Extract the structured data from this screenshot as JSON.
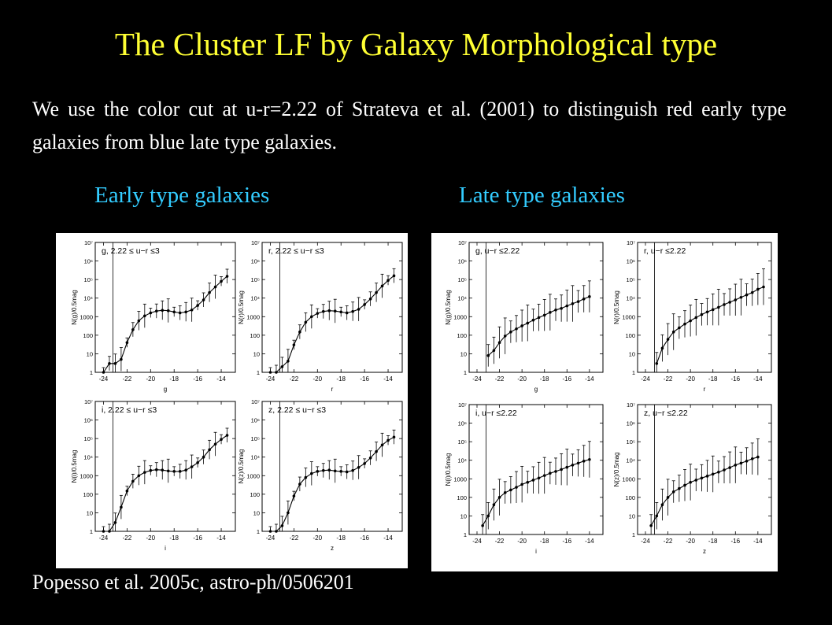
{
  "slide": {
    "title": "The Cluster LF by Galaxy Morphological type",
    "intro": "We use the color cut at u-r=2.22 of Strateva et al. (2001) to distinguish red early type galaxies from blue late type galaxies.",
    "early_title": "Early type galaxies",
    "late_title": "Late type galaxies",
    "citation": "Popesso et al. 2005c, astro-ph/0506201"
  },
  "chart_data": [
    {
      "type": "scatter",
      "group": "early",
      "band": "g",
      "annotation": "g, 2.22 ≤ u−r ≤3",
      "ylabel": "N(g)/0.5mag",
      "xlabel": "g",
      "xlim": [
        -24.7,
        -12.8
      ],
      "ylim_log10": [
        0,
        7
      ],
      "xticks": [
        -24,
        -22,
        -20,
        -18,
        -16,
        -14
      ],
      "yticks": [
        "1",
        "10",
        "100",
        "1000",
        "10⁴",
        "10⁵",
        "10⁶",
        "10⁷"
      ],
      "x": [
        -24,
        -23.5,
        -23,
        -22.5,
        -22,
        -21.5,
        -21,
        -20.5,
        -20,
        -19.5,
        -19,
        -18.5,
        -18,
        -17.5,
        -17,
        -16.5,
        -16,
        -15.5,
        -15,
        -14.5,
        -14,
        -13.5
      ],
      "y": [
        1,
        3,
        3,
        5,
        40,
        200,
        600,
        1100,
        1600,
        2000,
        2200,
        2100,
        1800,
        1600,
        1800,
        2300,
        4000,
        8000,
        20000,
        40000,
        80000,
        150000
      ]
    },
    {
      "type": "scatter",
      "group": "early",
      "band": "r",
      "annotation": "r, 2.22 ≤ u−r ≤3",
      "ylabel": "N(r)/0.5mag",
      "xlabel": "r",
      "xlim": [
        -24.7,
        -12.8
      ],
      "ylim_log10": [
        0,
        7
      ],
      "xticks": [
        -24,
        -22,
        -20,
        -18,
        -16,
        -14
      ],
      "yticks": [
        "1",
        "10",
        "100",
        "1000",
        "10⁴",
        "10⁵",
        "10⁶",
        "10⁷"
      ],
      "x": [
        -24,
        -23.5,
        -23,
        -22.5,
        -22,
        -21.5,
        -21,
        -20.5,
        -20,
        -19.5,
        -19,
        -18.5,
        -18,
        -17.5,
        -17,
        -16.5,
        -16,
        -15.5,
        -15,
        -14.5,
        -14,
        -13.5
      ],
      "y": [
        1,
        1,
        2,
        4,
        30,
        150,
        500,
        1000,
        1500,
        1900,
        2100,
        2000,
        1800,
        1600,
        1900,
        2500,
        4500,
        9000,
        20000,
        45000,
        90000,
        160000
      ]
    },
    {
      "type": "scatter",
      "group": "early",
      "band": "i",
      "annotation": "i, 2.22 ≤ u−r ≤3",
      "ylabel": "N(i)/0.5mag",
      "xlabel": "i",
      "xlim": [
        -24.7,
        -12.8
      ],
      "ylim_log10": [
        0,
        7
      ],
      "xticks": [
        -24,
        -22,
        -20,
        -18,
        -16,
        -14
      ],
      "yticks": [
        "1",
        "10",
        "100",
        "1000",
        "10⁴",
        "10⁵",
        "10⁶",
        "10⁷"
      ],
      "x": [
        -24,
        -23.5,
        -23,
        -22.5,
        -22,
        -21.5,
        -21,
        -20.5,
        -20,
        -19.5,
        -19,
        -18.5,
        -18,
        -17.5,
        -17,
        -16.5,
        -16,
        -15.5,
        -15,
        -14.5,
        -14,
        -13.5
      ],
      "y": [
        1,
        1,
        3,
        20,
        150,
        500,
        1000,
        1500,
        1900,
        2100,
        2000,
        1800,
        1700,
        1700,
        2000,
        3000,
        5000,
        10000,
        25000,
        50000,
        90000,
        150000
      ]
    },
    {
      "type": "scatter",
      "group": "early",
      "band": "z",
      "annotation": "z, 2.22 ≤ u−r ≤3",
      "ylabel": "N(z)/0.5mag",
      "xlabel": "z",
      "xlim": [
        -24.7,
        -12.8
      ],
      "ylim_log10": [
        0,
        7
      ],
      "xticks": [
        -24,
        -22,
        -20,
        -18,
        -16,
        -14
      ],
      "yticks": [
        "1",
        "10",
        "100",
        "1000",
        "10⁴",
        "10⁵",
        "10⁶",
        "10⁷"
      ],
      "x": [
        -24,
        -23.5,
        -23,
        -22.5,
        -22,
        -21.5,
        -21,
        -20.5,
        -20,
        -19.5,
        -19,
        -18.5,
        -18,
        -17.5,
        -17,
        -16.5,
        -16,
        -15.5,
        -15,
        -14.5,
        -14,
        -13.5
      ],
      "y": [
        1,
        1,
        2,
        10,
        80,
        350,
        800,
        1300,
        1700,
        1900,
        2000,
        1800,
        1700,
        1600,
        1900,
        2800,
        4500,
        9000,
        20000,
        45000,
        80000,
        120000
      ]
    },
    {
      "type": "scatter",
      "group": "late",
      "band": "g",
      "annotation": "g, u−r ≤2.22",
      "ylabel": "N(g)/0.5mag",
      "xlabel": "g",
      "xlim": [
        -24.7,
        -12.8
      ],
      "ylim_log10": [
        0,
        7
      ],
      "xticks": [
        -24,
        -22,
        -20,
        -18,
        -16,
        -14
      ],
      "yticks": [
        "1",
        "10",
        "100",
        "1000",
        "10⁴",
        "10⁵",
        "10⁶",
        "10⁷"
      ],
      "x": [
        -23,
        -22.5,
        -22,
        -21.5,
        -21,
        -20.5,
        -20,
        -19.5,
        -19,
        -18.5,
        -18,
        -17.5,
        -17,
        -16.5,
        -16,
        -15.5,
        -15,
        -14.5,
        -14
      ],
      "y": [
        8,
        15,
        40,
        90,
        150,
        220,
        320,
        450,
        650,
        900,
        1200,
        1700,
        2300,
        2800,
        3800,
        5000,
        6500,
        9000,
        12000
      ]
    },
    {
      "type": "scatter",
      "group": "late",
      "band": "r",
      "annotation": "r, u−r ≤2.22",
      "ylabel": "N(r)/0.5mag",
      "xlabel": "r",
      "xlim": [
        -24.7,
        -12.8
      ],
      "ylim_log10": [
        0,
        7
      ],
      "xticks": [
        -24,
        -22,
        -20,
        -18,
        -16,
        -14
      ],
      "yticks": [
        "1",
        "10",
        "100",
        "1000",
        "10⁴",
        "10⁵",
        "10⁶",
        "10⁷"
      ],
      "x": [
        -23,
        -22.5,
        -22,
        -21.5,
        -21,
        -20.5,
        -20,
        -19.5,
        -19,
        -18.5,
        -18,
        -17.5,
        -17,
        -16.5,
        -16,
        -15.5,
        -15,
        -14.5,
        -14,
        -13.5
      ],
      "y": [
        3,
        20,
        60,
        150,
        250,
        400,
        600,
        900,
        1300,
        1800,
        2400,
        3200,
        4500,
        6000,
        8000,
        11000,
        15000,
        20000,
        30000,
        40000
      ]
    },
    {
      "type": "scatter",
      "group": "late",
      "band": "i",
      "annotation": "i, u−r ≤2.22",
      "ylabel": "N(i)/0.5mag",
      "xlabel": "i",
      "xlim": [
        -24.7,
        -12.8
      ],
      "ylim_log10": [
        0,
        7
      ],
      "xticks": [
        -24,
        -22,
        -20,
        -18,
        -16,
        -14
      ],
      "yticks": [
        "1",
        "10",
        "100",
        "1000",
        "10⁴",
        "10⁵",
        "10⁶",
        "10⁷"
      ],
      "x": [
        -23.5,
        -23,
        -22.5,
        -22,
        -21.5,
        -21,
        -20.5,
        -20,
        -19.5,
        -19,
        -18.5,
        -18,
        -17.5,
        -17,
        -16.5,
        -16,
        -15.5,
        -15,
        -14.5,
        -14
      ],
      "y": [
        3,
        10,
        40,
        100,
        180,
        250,
        350,
        500,
        650,
        850,
        1100,
        1500,
        2000,
        2500,
        3200,
        4200,
        5500,
        7000,
        9000,
        11000
      ]
    },
    {
      "type": "scatter",
      "group": "late",
      "band": "z",
      "annotation": "z, u−r ≤2.22",
      "ylabel": "N(z)/0.5mag",
      "xlabel": "z",
      "xlim": [
        -24.7,
        -12.8
      ],
      "ylim_log10": [
        0,
        7
      ],
      "xticks": [
        -24,
        -22,
        -20,
        -18,
        -16,
        -14
      ],
      "yticks": [
        "1",
        "10",
        "100",
        "1000",
        "10⁴",
        "10⁵",
        "10⁶",
        "10⁷"
      ],
      "x": [
        -23.5,
        -23,
        -22.5,
        -22,
        -21.5,
        -21,
        -20.5,
        -20,
        -19.5,
        -19,
        -18.5,
        -18,
        -17.5,
        -17,
        -16.5,
        -16,
        -15.5,
        -15,
        -14.5,
        -14
      ],
      "y": [
        3,
        10,
        40,
        100,
        200,
        300,
        450,
        650,
        850,
        1100,
        1400,
        1800,
        2300,
        3000,
        4000,
        5500,
        7000,
        9000,
        12000,
        15000
      ]
    }
  ]
}
